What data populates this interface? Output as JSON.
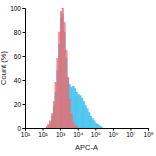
{
  "chart_data": {
    "type": "histogram",
    "x_label": "APC-A",
    "y_label": "Count (%)",
    "log": "x",
    "bins": [
      100,
      125.9,
      158.5,
      199.5,
      251.2,
      316.2,
      398.1,
      501.2,
      631,
      794.3,
      1000,
      1258.9,
      1584.9,
      1995.3,
      2511.9,
      3162.3,
      3981.1,
      5011.9,
      6309.6,
      7943.3,
      10000,
      12589,
      15849,
      19953,
      25119,
      31623,
      39811,
      50119,
      63096,
      79433,
      100000,
      125893,
      158489,
      199526,
      251189,
      316228,
      398107,
      501187,
      630957,
      794328,
      1000000
    ],
    "series": [
      {
        "color": "#3fc1f0",
        "values": [
          0,
          0,
          0,
          2,
          5,
          10,
          18,
          30,
          48,
          70,
          92,
          95,
          80,
          58,
          42,
          36,
          34,
          35,
          33,
          30,
          28,
          27,
          25,
          22,
          19,
          16,
          13,
          10,
          8,
          6,
          4,
          3,
          2,
          1,
          0,
          0,
          0,
          0,
          0,
          0
        ]
      },
      {
        "color": "#f06a6a",
        "values": [
          0,
          0,
          1,
          3,
          6,
          12,
          22,
          38,
          58,
          80,
          97,
          100,
          88,
          65,
          42,
          24,
          12,
          5,
          2,
          1,
          0,
          0,
          0,
          0,
          0,
          0,
          0,
          0,
          0,
          0,
          0,
          0,
          0,
          0,
          0,
          0,
          0,
          0,
          0,
          0
        ]
      }
    ],
    "xlim": [
      10,
      100000000
    ],
    "xticks": [
      {
        "value": 10,
        "label": "10¹"
      },
      {
        "value": 100,
        "label": "10²"
      },
      {
        "value": 1000,
        "label": "10³"
      },
      {
        "value": 10000,
        "label": "10⁴"
      },
      {
        "value": 100000,
        "label": "10⁵"
      },
      {
        "value": 1000000,
        "label": "10⁶"
      },
      {
        "value": 10000000,
        "label": "10⁷"
      },
      {
        "value": 100000000,
        "label": "10⁸"
      }
    ],
    "ylim": [
      0,
      100
    ],
    "yticks": [
      0,
      20,
      40,
      60,
      80,
      100
    ],
    "grid": false
  }
}
